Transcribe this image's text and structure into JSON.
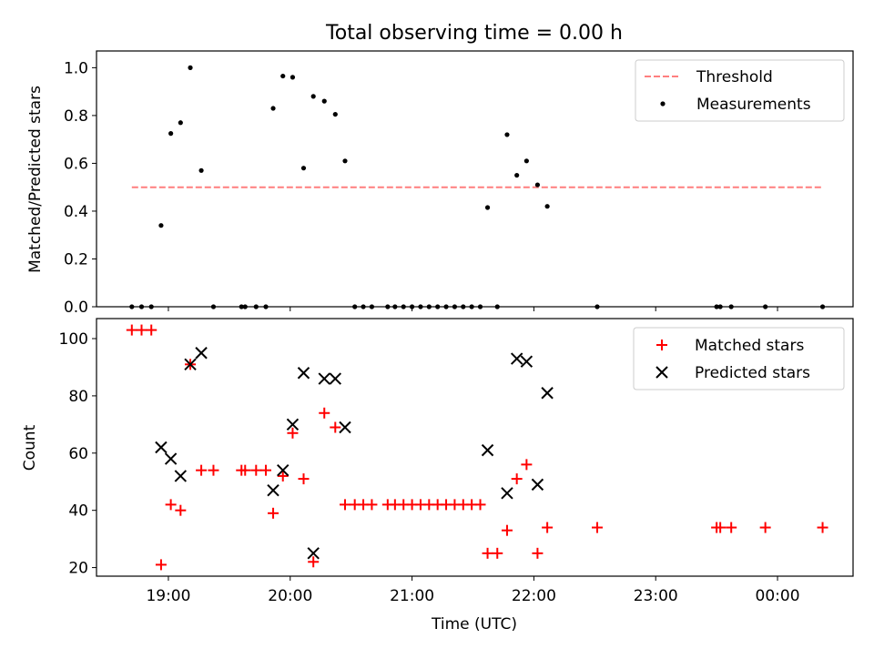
{
  "title": "Total observing time = 0.00 h",
  "x_axis": {
    "label": "Time (UTC)",
    "ticks": [
      "19:00",
      "20:00",
      "21:00",
      "22:00",
      "23:00",
      "00:00"
    ],
    "range_hours": [
      18.41,
      24.62
    ]
  },
  "colors": {
    "threshold": "#ff7f7f",
    "measurement": "#000000",
    "matched": "#ff0000",
    "predicted": "#000000"
  },
  "chart_data": [
    {
      "type": "scatter",
      "ylabel": "Matched/Predicted stars",
      "ylim": [
        0,
        1.07
      ],
      "yticks": [
        "0.0",
        "0.2",
        "0.4",
        "0.6",
        "0.8",
        "1.0"
      ],
      "legend_position": "upper right",
      "legend": [
        "Threshold",
        "Measurements"
      ],
      "threshold": {
        "value": 0.5,
        "x_range": [
          18.7,
          24.37
        ]
      },
      "measurements": [
        [
          18.7,
          0
        ],
        [
          18.78,
          0
        ],
        [
          18.86,
          0
        ],
        [
          18.94,
          0.34
        ],
        [
          19.02,
          0.725
        ],
        [
          19.1,
          0.77
        ],
        [
          19.18,
          1.0
        ],
        [
          19.27,
          0.57
        ],
        [
          19.37,
          0
        ],
        [
          19.6,
          0
        ],
        [
          19.63,
          0
        ],
        [
          19.72,
          0
        ],
        [
          19.8,
          0
        ],
        [
          19.86,
          0.83
        ],
        [
          19.94,
          0.965
        ],
        [
          20.02,
          0.96
        ],
        [
          20.11,
          0.58
        ],
        [
          20.19,
          0.88
        ],
        [
          20.28,
          0.86
        ],
        [
          20.37,
          0.805
        ],
        [
          20.45,
          0.61
        ],
        [
          20.53,
          0
        ],
        [
          20.6,
          0
        ],
        [
          20.67,
          0
        ],
        [
          20.8,
          0
        ],
        [
          20.86,
          0
        ],
        [
          20.93,
          0
        ],
        [
          21.0,
          0
        ],
        [
          21.07,
          0
        ],
        [
          21.14,
          0
        ],
        [
          21.21,
          0
        ],
        [
          21.28,
          0
        ],
        [
          21.35,
          0
        ],
        [
          21.42,
          0
        ],
        [
          21.49,
          0
        ],
        [
          21.56,
          0
        ],
        [
          21.62,
          0.415
        ],
        [
          21.7,
          0
        ],
        [
          21.78,
          0.72
        ],
        [
          21.86,
          0.55
        ],
        [
          21.94,
          0.61
        ],
        [
          22.03,
          0.51
        ],
        [
          22.11,
          0.42
        ],
        [
          22.52,
          0
        ],
        [
          23.5,
          0
        ],
        [
          23.53,
          0
        ],
        [
          23.62,
          0
        ],
        [
          23.9,
          0
        ],
        [
          24.37,
          0
        ]
      ]
    },
    {
      "type": "scatter",
      "ylabel": "Count",
      "ylim": [
        17,
        107
      ],
      "yticks": [
        "20",
        "40",
        "60",
        "80",
        "100"
      ],
      "legend_position": "upper right",
      "series": [
        {
          "name": "Matched stars",
          "marker": "+",
          "points": [
            [
              18.7,
              103
            ],
            [
              18.78,
              103
            ],
            [
              18.86,
              103
            ],
            [
              18.94,
              21
            ],
            [
              19.02,
              42
            ],
            [
              19.1,
              40
            ],
            [
              19.18,
              91
            ],
            [
              19.27,
              54
            ],
            [
              19.37,
              54
            ],
            [
              19.6,
              54
            ],
            [
              19.63,
              54
            ],
            [
              19.72,
              54
            ],
            [
              19.8,
              54
            ],
            [
              19.86,
              39
            ],
            [
              19.94,
              52
            ],
            [
              20.02,
              67
            ],
            [
              20.11,
              51
            ],
            [
              20.19,
              22
            ],
            [
              20.28,
              74
            ],
            [
              20.37,
              69
            ],
            [
              20.45,
              42
            ],
            [
              20.53,
              42
            ],
            [
              20.6,
              42
            ],
            [
              20.67,
              42
            ],
            [
              20.8,
              42
            ],
            [
              20.86,
              42
            ],
            [
              20.93,
              42
            ],
            [
              21.0,
              42
            ],
            [
              21.07,
              42
            ],
            [
              21.14,
              42
            ],
            [
              21.21,
              42
            ],
            [
              21.28,
              42
            ],
            [
              21.35,
              42
            ],
            [
              21.42,
              42
            ],
            [
              21.49,
              42
            ],
            [
              21.56,
              42
            ],
            [
              21.62,
              25
            ],
            [
              21.7,
              25
            ],
            [
              21.78,
              33
            ],
            [
              21.86,
              51
            ],
            [
              21.94,
              56
            ],
            [
              22.03,
              25
            ],
            [
              22.11,
              34
            ],
            [
              22.52,
              34
            ],
            [
              23.5,
              34
            ],
            [
              23.53,
              34
            ],
            [
              23.62,
              34
            ],
            [
              23.9,
              34
            ],
            [
              24.37,
              34
            ]
          ]
        },
        {
          "name": "Predicted stars",
          "marker": "x",
          "points": [
            [
              18.94,
              62
            ],
            [
              19.02,
              58
            ],
            [
              19.1,
              52
            ],
            [
              19.18,
              91
            ],
            [
              19.27,
              95
            ],
            [
              19.86,
              47
            ],
            [
              19.94,
              54
            ],
            [
              20.02,
              70
            ],
            [
              20.11,
              88
            ],
            [
              20.19,
              25
            ],
            [
              20.28,
              86
            ],
            [
              20.37,
              86
            ],
            [
              20.45,
              69
            ],
            [
              21.62,
              61
            ],
            [
              21.78,
              46
            ],
            [
              21.86,
              93
            ],
            [
              21.94,
              92
            ],
            [
              22.03,
              49
            ],
            [
              22.11,
              81
            ]
          ]
        }
      ]
    }
  ]
}
